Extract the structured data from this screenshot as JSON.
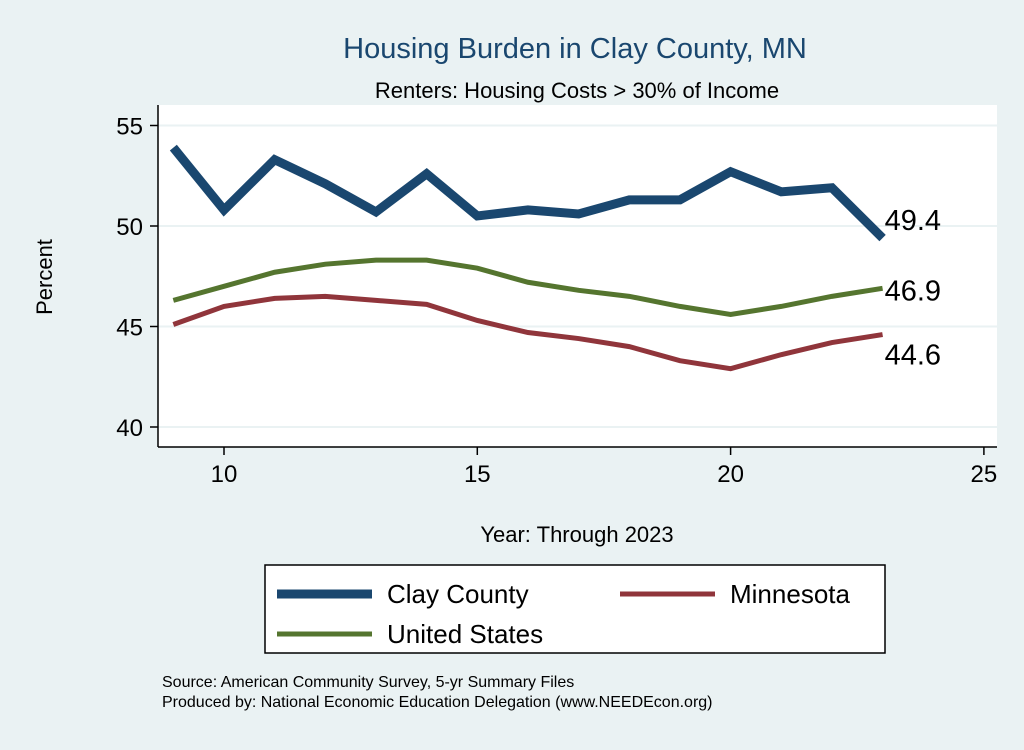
{
  "chart_data": {
    "type": "line",
    "title": "Housing Burden in Clay County, MN",
    "subtitle": "Renters: Housing Costs > 30% of Income",
    "xlabel": "Year: Through 2023",
    "ylabel": "Percent",
    "xlim": [
      8.7,
      25.3
    ],
    "ylim": [
      39,
      56
    ],
    "xticks": [
      10,
      15,
      20,
      25
    ],
    "yticks": [
      40,
      45,
      50,
      55
    ],
    "grid": true,
    "legend_position": "bottom",
    "x": [
      9,
      10,
      11,
      12,
      13,
      14,
      15,
      16,
      17,
      18,
      19,
      20,
      21,
      22,
      23
    ],
    "series": [
      {
        "name": "Clay County",
        "color": "#1a476f",
        "width": 9,
        "values": [
          53.9,
          50.8,
          53.3,
          52.1,
          50.7,
          52.6,
          50.5,
          50.8,
          50.6,
          51.3,
          51.3,
          52.7,
          51.7,
          51.9,
          49.4
        ],
        "end_label": "49.4"
      },
      {
        "name": "Minnesota",
        "color": "#90353b",
        "width": 5,
        "values": [
          45.1,
          46.0,
          46.4,
          46.5,
          46.3,
          46.1,
          45.3,
          44.7,
          44.4,
          44.0,
          43.3,
          42.9,
          43.6,
          44.2,
          44.6
        ],
        "end_label": "44.6"
      },
      {
        "name": "United States",
        "color": "#55752f",
        "width": 5,
        "values": [
          46.3,
          47.0,
          47.7,
          48.1,
          48.3,
          48.3,
          47.9,
          47.2,
          46.8,
          46.5,
          46.0,
          45.6,
          46.0,
          46.5,
          46.9
        ],
        "end_label": "46.9"
      }
    ],
    "notes": [
      "Source: American Community Survey, 5-yr Summary Files",
      "Produced by: National Economic Education Delegation (www.NEEDEcon.org)"
    ]
  }
}
